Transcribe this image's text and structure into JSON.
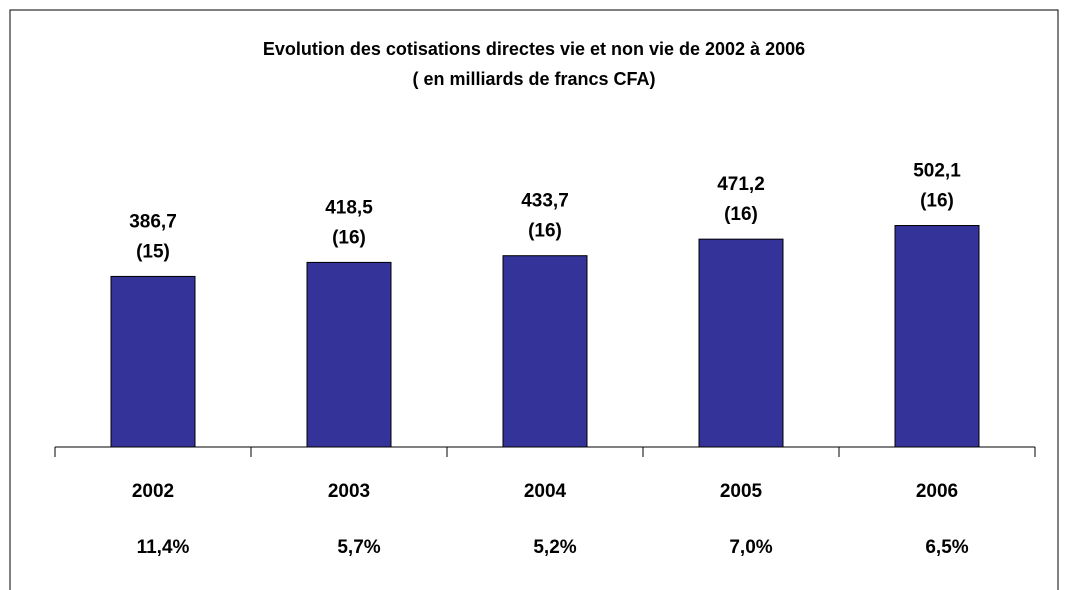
{
  "chart_data": {
    "type": "bar",
    "title": "Evolution des cotisations directes  vie et non vie de 2002 à 2006",
    "subtitle": "( en milliards de francs CFA)",
    "categories": [
      "2002",
      "2003",
      "2004",
      "2005",
      "2006"
    ],
    "values": [
      386.7,
      418.5,
      433.7,
      471.2,
      502.1
    ],
    "value_labels": [
      "386,7",
      "418,5",
      "433,7",
      "471,2",
      "502,1"
    ],
    "counts": [
      15,
      16,
      16,
      16,
      16
    ],
    "count_labels": [
      "(15)",
      "(16)",
      "(16)",
      "(16)",
      "(16)"
    ],
    "growth": [
      11.4,
      5.7,
      5.2,
      7.0,
      6.5
    ],
    "growth_labels": [
      "11,4%",
      "5,7%",
      "5,2%",
      "7,0%",
      "6,5%"
    ],
    "color": "#333399",
    "ylim": [
      0,
      900
    ]
  }
}
